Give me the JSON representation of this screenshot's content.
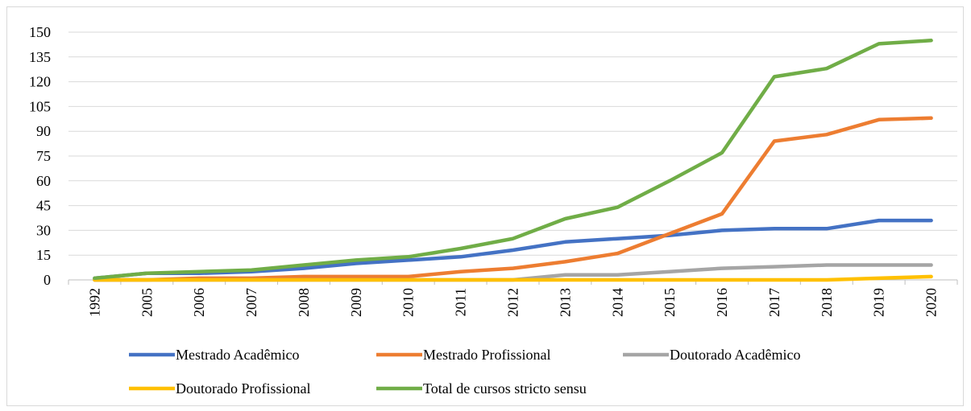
{
  "chart_data": {
    "type": "line",
    "title": "",
    "xlabel": "",
    "ylabel": "",
    "categories": [
      "1992",
      "2005",
      "2006",
      "2007",
      "2008",
      "2009",
      "2010",
      "2011",
      "2012",
      "2013",
      "2014",
      "2015",
      "2016",
      "2017",
      "2018",
      "2019",
      "2020"
    ],
    "ylim": [
      0,
      150
    ],
    "yticks": [
      0,
      15,
      30,
      45,
      60,
      75,
      90,
      105,
      120,
      135,
      150
    ],
    "grid": true,
    "legend_position": "bottom",
    "series": [
      {
        "name": "Mestrado Acadêmico",
        "color": "#4472C4",
        "values": [
          1,
          4,
          4,
          5,
          7,
          10,
          12,
          14,
          18,
          23,
          25,
          27,
          30,
          31,
          31,
          36,
          36
        ]
      },
      {
        "name": "Mestrado Profissional",
        "color": "#ED7D31",
        "values": [
          0,
          0,
          1,
          1,
          2,
          2,
          2,
          5,
          7,
          11,
          16,
          28,
          40,
          84,
          88,
          97,
          98
        ]
      },
      {
        "name": "Doutorado Acadêmico",
        "color": "#A5A5A5",
        "values": [
          0,
          0,
          0,
          0,
          0,
          0,
          0,
          0,
          0,
          3,
          3,
          5,
          7,
          8,
          9,
          9,
          9
        ]
      },
      {
        "name": "Doutorado Profissional",
        "color": "#FFC000",
        "values": [
          0,
          0,
          0,
          0,
          0,
          0,
          0,
          0,
          0,
          0,
          0,
          0,
          0,
          0,
          0,
          1,
          2
        ]
      },
      {
        "name": "Total de cursos stricto sensu",
        "color": "#70AD47",
        "values": [
          1,
          4,
          5,
          6,
          9,
          12,
          14,
          19,
          25,
          37,
          44,
          60,
          77,
          123,
          128,
          143,
          145
        ]
      }
    ]
  }
}
